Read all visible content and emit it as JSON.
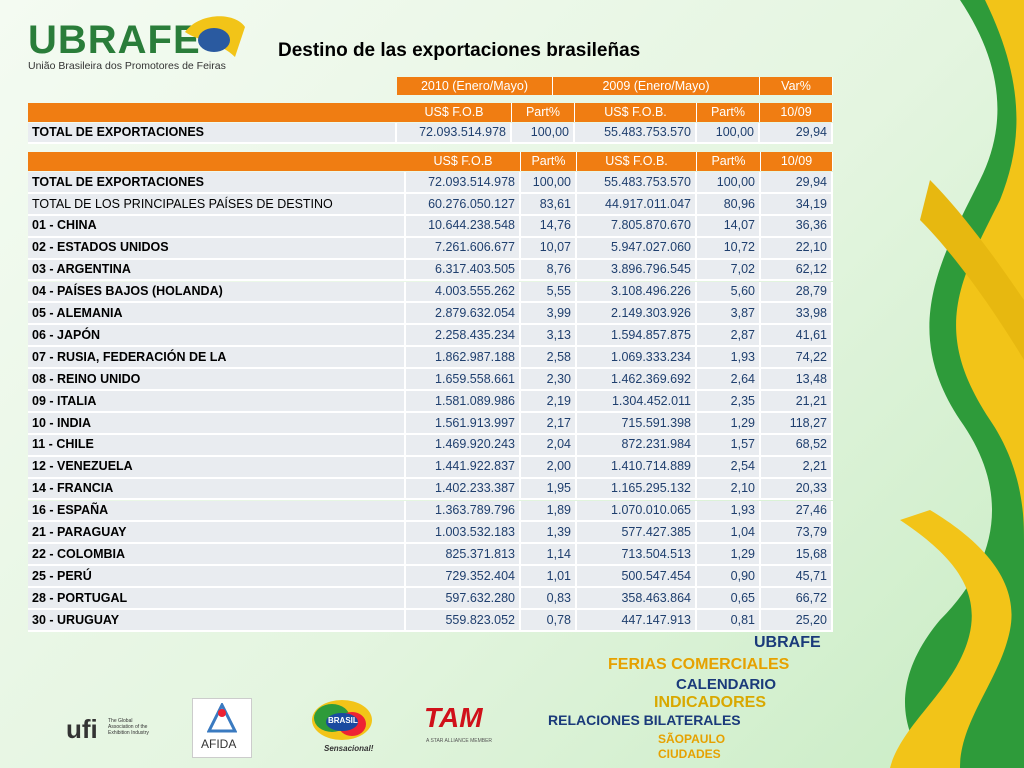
{
  "header": {
    "logo": "UBRAFE",
    "logo_subtitle": "União Brasileira dos Promotores de Feiras",
    "title": "Destino de las exportaciones brasileñas"
  },
  "table1": {
    "groups": [
      "2010 (Enero/Mayo)",
      "2009 (Enero/Mayo)",
      "Var%"
    ],
    "columns": [
      "US$ F.O.B",
      "Part%",
      "US$ F.O.B.",
      "Part%",
      "10/09"
    ],
    "rows": [
      [
        "TOTAL DE EXPORTACIONES",
        "72.093.514.978",
        "100,00",
        "55.483.753.570",
        "100,00",
        "29,94"
      ]
    ]
  },
  "table2": {
    "columns": [
      "US$ F.O.B",
      "Part%",
      "US$ F.O.B.",
      "Part%",
      "10/09"
    ],
    "rows": [
      [
        "TOTAL DE EXPORTACIONES",
        "72.093.514.978",
        "100,00",
        "55.483.753.570",
        "100,00",
        "29,94"
      ],
      [
        "TOTAL DE  LOS PRINCIPALES PAÍSES DE DESTINO",
        "60.276.050.127",
        "83,61",
        "44.917.011.047",
        "80,96",
        "34,19"
      ],
      [
        "01 - CHINA",
        "10.644.238.548",
        "14,76",
        "7.805.870.670",
        "14,07",
        "36,36"
      ],
      [
        "02 - ESTADOS UNIDOS",
        "7.261.606.677",
        "10,07",
        "5.947.027.060",
        "10,72",
        "22,10"
      ],
      [
        "03 - ARGENTINA",
        "6.317.403.505",
        "8,76",
        "3.896.796.545",
        "7,02",
        "62,12"
      ],
      [
        "04 - PAÍSES BAJOS (HOLANDA)",
        "4.003.555.262",
        "5,55",
        "3.108.496.226",
        "5,60",
        "28,79"
      ],
      [
        "05 - ALEMANIA",
        "2.879.632.054",
        "3,99",
        "2.149.303.926",
        "3,87",
        "33,98"
      ],
      [
        "06 - JAPÓN",
        "2.258.435.234",
        "3,13",
        "1.594.857.875",
        "2,87",
        "41,61"
      ],
      [
        "07 - RUSIA, FEDERACIÓN DE LA",
        "1.862.987.188",
        "2,58",
        "1.069.333.234",
        "1,93",
        "74,22"
      ],
      [
        "08 - REINO UNIDO",
        "1.659.558.661",
        "2,30",
        "1.462.369.692",
        "2,64",
        "13,48"
      ],
      [
        "09 - ITALIA",
        "1.581.089.986",
        "2,19",
        "1.304.452.011",
        "2,35",
        "21,21"
      ],
      [
        "10 - INDIA",
        "1.561.913.997",
        "2,17",
        "715.591.398",
        "1,29",
        "118,27"
      ],
      [
        "11 - CHILE",
        "1.469.920.243",
        "2,04",
        "872.231.984",
        "1,57",
        "68,52"
      ],
      [
        "12 - VENEZUELA",
        "1.441.922.837",
        "2,00",
        "1.410.714.889",
        "2,54",
        "2,21"
      ],
      [
        "14 - FRANCIA",
        "1.402.233.387",
        "1,95",
        "1.165.295.132",
        "2,10",
        "20,33"
      ],
      [
        "16 - ESPAÑA",
        "1.363.789.796",
        "1,89",
        "1.070.010.065",
        "1,93",
        "27,46"
      ],
      [
        "21 - PARAGUAY",
        "1.003.532.183",
        "1,39",
        "577.427.385",
        "1,04",
        "73,79"
      ],
      [
        "22 - COLOMBIA",
        "825.371.813",
        "1,14",
        "713.504.513",
        "1,29",
        "15,68"
      ],
      [
        "25 - PERÚ",
        "729.352.404",
        "1,01",
        "500.547.454",
        "0,90",
        "45,71"
      ],
      [
        "28 - PORTUGAL",
        "597.632.280",
        "0,83",
        "358.463.864",
        "0,65",
        "66,72"
      ],
      [
        "30 - URUGUAY",
        "559.823.052",
        "0,78",
        "447.147.913",
        "0,81",
        "25,20"
      ]
    ]
  },
  "menu": [
    "UBRAFE",
    "FERIAS COMERCIALES",
    "CALENDARIO",
    "INDICADORES",
    "RELACIONES BILATERALES",
    "SÃOPAULO",
    "CIUDADES"
  ],
  "logos": {
    "ufi": "ufi",
    "ufi_text": "The Global Association of the Exhibition Industry",
    "afida": "AFIDA",
    "brasil": "BRASIL",
    "brasil_slogan": "Sensacional!",
    "tam": "TAM",
    "tam_text": "A STAR ALLIANCE MEMBER"
  }
}
